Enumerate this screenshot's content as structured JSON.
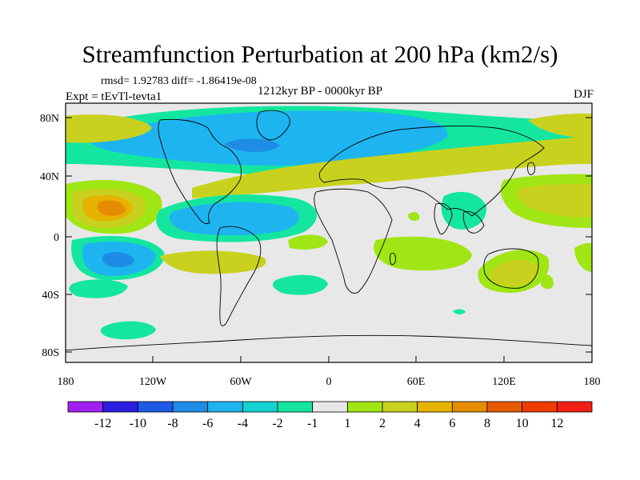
{
  "title": "Streamfunction Perturbation at 200 hPa (km2/s)",
  "stats": "rmsd= 1.92783 diff= -1.86419e-08",
  "expt": "Expt = tEvTl-tevta1",
  "period": "1212kyr BP - 0000kyr BP",
  "season": "DJF",
  "lat_ticks": [
    "80N",
    "40N",
    "0",
    "40S",
    "80S"
  ],
  "lon_ticks": [
    "180",
    "120W",
    "60W",
    "0",
    "60E",
    "120E",
    "180"
  ],
  "colorbar": {
    "labels": [
      "-12",
      "-10",
      "-8",
      "-6",
      "-4",
      "-2",
      "-1",
      "1",
      "2",
      "4",
      "6",
      "8",
      "10",
      "12"
    ],
    "colors": [
      "#a01ef0",
      "#2a1ee0",
      "#1e5ae6",
      "#1e8ce6",
      "#1eb4f0",
      "#14d2d2",
      "#14e6a0",
      "#e8e8e8",
      "#a0e614",
      "#c8d21e",
      "#e6b400",
      "#e68c00",
      "#e65a00",
      "#f03c00",
      "#f01e14"
    ]
  },
  "colors": {
    "background_field": "#e8e8e8",
    "coast": "#000000"
  }
}
